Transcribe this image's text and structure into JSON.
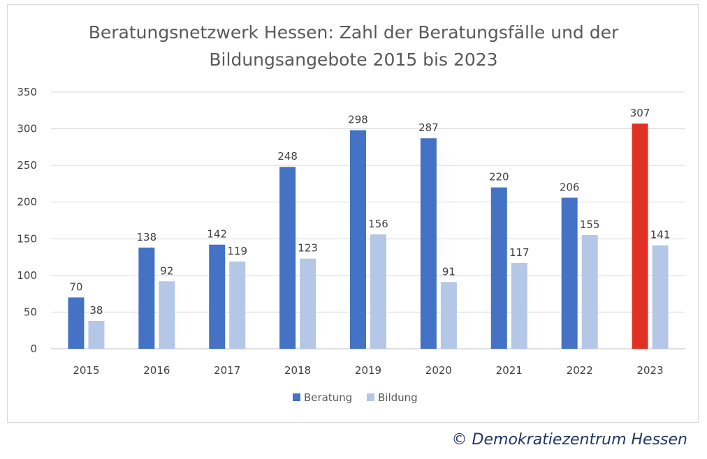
{
  "credit": "© Demokratiezentrum Hessen",
  "chart_data": {
    "type": "bar",
    "title_lines": [
      "Beratungsnetzwerk Hessen: Zahl der Beratungsfälle und der",
      "Bildungsangebote 2015 bis 2023"
    ],
    "categories": [
      "2015",
      "2016",
      "2017",
      "2018",
      "2019",
      "2020",
      "2021",
      "2022",
      "2023"
    ],
    "series": [
      {
        "name": "Beratung",
        "color": "#4472c4",
        "values": [
          70,
          138,
          142,
          248,
          298,
          287,
          220,
          206,
          307
        ]
      },
      {
        "name": "Bildung",
        "color": "#b4c7e7",
        "values": [
          38,
          92,
          119,
          123,
          156,
          91,
          117,
          155,
          141
        ]
      }
    ],
    "highlight": {
      "series": "Beratung",
      "category": "2023",
      "color": "#e03224"
    },
    "ylim": [
      0,
      350
    ],
    "yticks": [
      0,
      50,
      100,
      150,
      200,
      250,
      300,
      350
    ],
    "grid": true,
    "legend_position": "bottom"
  }
}
